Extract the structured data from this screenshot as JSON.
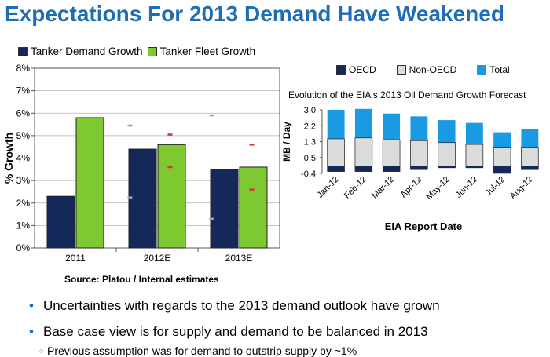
{
  "page": {
    "title": "Expectations For 2013 Demand Have Weakened",
    "colors": {
      "title": "#1f6db5",
      "demand": "#14295a",
      "fleet": "#7ec832",
      "oecd": "#14295a",
      "nonoecd": "#d9dcd9",
      "total": "#1a9ae2",
      "dash_gray": "#a0a0a0",
      "dash_red": "#e03030"
    }
  },
  "chart_data": [
    {
      "type": "bar",
      "categories": [
        "2011",
        "2012E",
        "2013E"
      ],
      "series": [
        {
          "name": "Tanker Demand Growth",
          "values": [
            2.3,
            4.4,
            3.5
          ]
        },
        {
          "name": "Tanker Fleet Growth",
          "values": [
            5.8,
            4.6,
            3.6
          ]
        }
      ],
      "range_markers": {
        "demand": [
          null,
          {
            "high": 5.45,
            "low": 2.25
          },
          {
            "high": 5.9,
            "low": 1.3
          }
        ],
        "fleet": [
          null,
          {
            "high": 5.05,
            "low": 3.6
          },
          {
            "high": 4.6,
            "low": 2.6
          }
        ]
      },
      "xlabel": "",
      "ylabel": "% Growth",
      "ylim": [
        0,
        8
      ],
      "yticks": [
        "0%",
        "1%",
        "2%",
        "3%",
        "4%",
        "5%",
        "6%",
        "7%",
        "8%"
      ],
      "legend": "top",
      "source": "Source: Platou / Internal estimates"
    },
    {
      "type": "bar",
      "stacked": true,
      "title": "Evolution of the EIA's 2013 Oil Demand Growth Forecast",
      "categories": [
        "Jan-12",
        "Feb-12",
        "Mar-12",
        "Apr-12",
        "May-12",
        "Jun-12",
        "Jul-12",
        "Aug-12"
      ],
      "series": [
        {
          "name": "OECD",
          "values": [
            -0.3,
            -0.3,
            -0.3,
            -0.2,
            -0.1,
            -0.1,
            -0.4,
            -0.2
          ]
        },
        {
          "name": "Non-OECD",
          "values": [
            1.45,
            1.5,
            1.4,
            1.35,
            1.25,
            1.15,
            1.0,
            1.0
          ]
        },
        {
          "name": "Total",
          "values": [
            3.0,
            3.05,
            2.8,
            2.65,
            2.45,
            2.3,
            1.8,
            1.95
          ]
        }
      ],
      "xlabel": "EIA Report Date",
      "ylabel": "MB / Day",
      "ylim": [
        -0.4,
        3.0
      ],
      "yticks": [
        "3.0",
        "2.2",
        "1.3",
        "0.5",
        "-0.4"
      ],
      "legend": "top"
    }
  ],
  "bullets": [
    "Uncertainties with regards to the 2013 demand outlook have grown",
    "Base case view is for supply and demand to be balanced in 2013"
  ],
  "sub_bullet": "Previous assumption was for demand to outstrip supply by ~1%"
}
